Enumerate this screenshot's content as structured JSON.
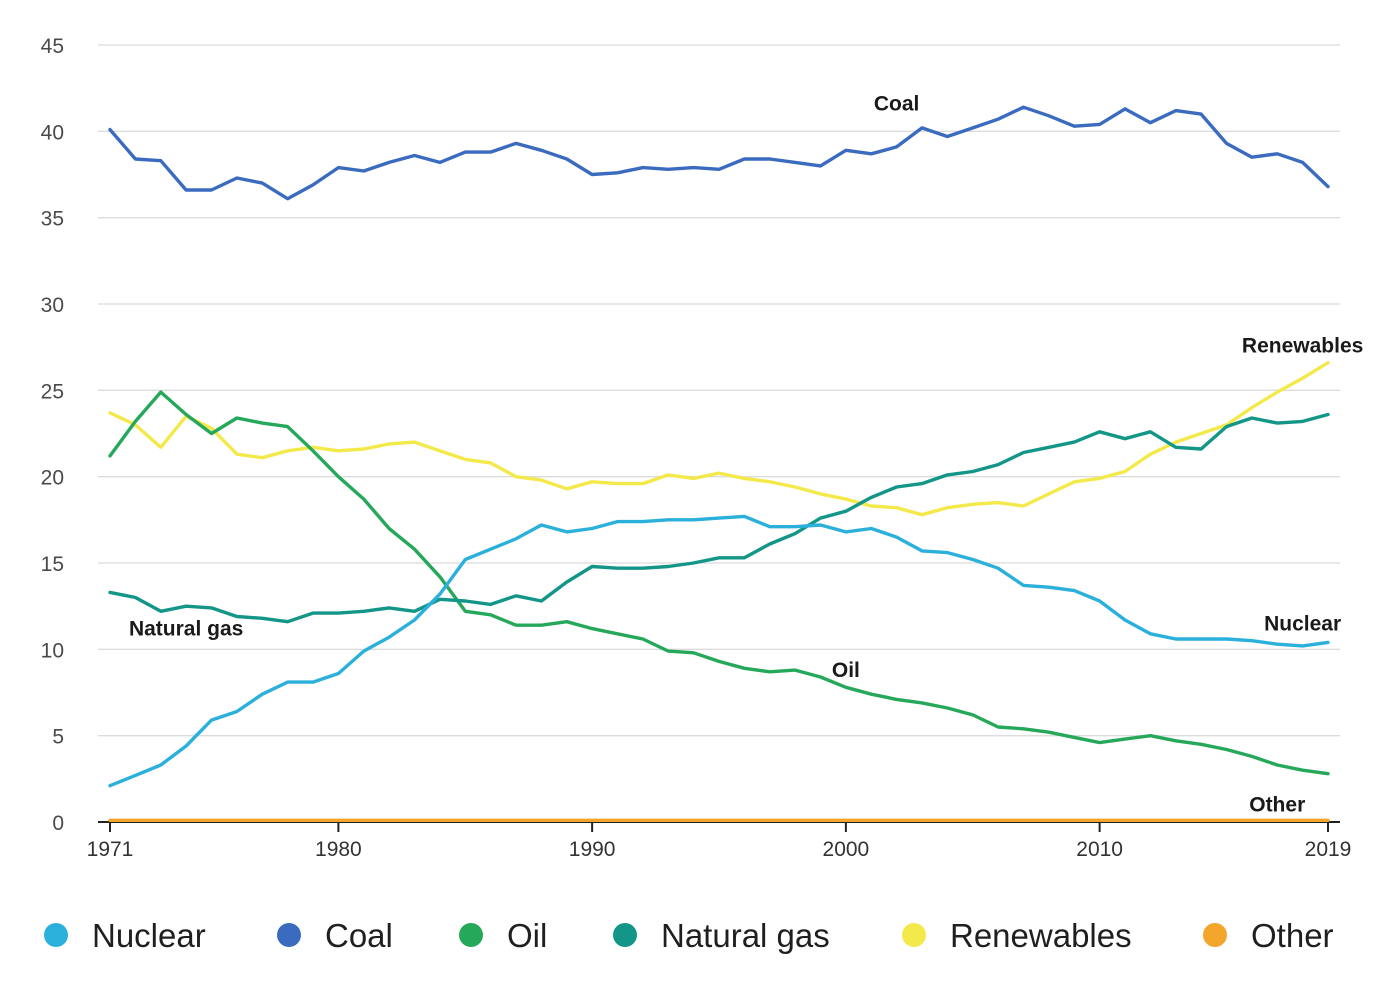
{
  "chart_data": {
    "type": "line",
    "title": "",
    "xlabel": "",
    "ylabel": "",
    "ylim": [
      0,
      45
    ],
    "xlim": [
      1971,
      2019
    ],
    "yticks": [
      0,
      5,
      10,
      15,
      20,
      25,
      30,
      35,
      40,
      45
    ],
    "xticks": [
      1971,
      1980,
      1990,
      2000,
      2010,
      2019
    ],
    "grid": "horizontal",
    "legend_position": "bottom",
    "x": [
      1971,
      1972,
      1973,
      1974,
      1975,
      1976,
      1977,
      1978,
      1979,
      1980,
      1981,
      1982,
      1983,
      1984,
      1985,
      1986,
      1987,
      1988,
      1989,
      1990,
      1991,
      1992,
      1993,
      1994,
      1995,
      1996,
      1997,
      1998,
      1999,
      2000,
      2001,
      2002,
      2003,
      2004,
      2005,
      2006,
      2007,
      2008,
      2009,
      2010,
      2011,
      2012,
      2013,
      2014,
      2015,
      2016,
      2017,
      2018,
      2019
    ],
    "series": [
      {
        "name": "Coal",
        "color": "#3b6bbf",
        "label": "Coal",
        "values": [
          40.1,
          38.4,
          38.3,
          36.6,
          36.6,
          37.3,
          37.0,
          36.1,
          36.9,
          37.9,
          37.7,
          38.2,
          38.6,
          38.2,
          38.8,
          38.8,
          39.3,
          38.9,
          38.4,
          37.5,
          37.6,
          37.9,
          37.8,
          37.9,
          37.8,
          38.4,
          38.4,
          38.2,
          38.0,
          38.9,
          38.7,
          39.1,
          40.2,
          39.7,
          40.2,
          40.7,
          41.4,
          40.9,
          40.3,
          40.4,
          41.3,
          40.5,
          41.2,
          41.0,
          39.3,
          38.5,
          38.7,
          38.2,
          36.8
        ]
      },
      {
        "name": "Renewables",
        "color": "#f4e94a",
        "label": "Renewables",
        "values": [
          23.7,
          23.0,
          21.7,
          23.5,
          22.8,
          21.3,
          21.1,
          21.5,
          21.7,
          21.5,
          21.6,
          21.9,
          22.0,
          21.5,
          21.0,
          20.8,
          20.0,
          19.8,
          19.3,
          19.7,
          19.6,
          19.6,
          20.1,
          19.9,
          20.2,
          19.9,
          19.7,
          19.4,
          19.0,
          18.7,
          18.3,
          18.2,
          17.8,
          18.2,
          18.4,
          18.5,
          18.3,
          19.0,
          19.7,
          19.9,
          20.3,
          21.3,
          22.0,
          22.5,
          23.0,
          24.0,
          24.9,
          25.7,
          26.6
        ]
      },
      {
        "name": "Oil",
        "color": "#26a85b",
        "label": "Oil",
        "values": [
          21.2,
          23.2,
          24.9,
          23.6,
          22.5,
          23.4,
          23.1,
          22.9,
          21.5,
          20.0,
          18.7,
          17.0,
          15.8,
          14.2,
          12.2,
          12.0,
          11.4,
          11.4,
          11.6,
          11.2,
          10.9,
          10.6,
          9.9,
          9.8,
          9.3,
          8.9,
          8.7,
          8.8,
          8.4,
          7.8,
          7.4,
          7.1,
          6.9,
          6.6,
          6.2,
          5.5,
          5.4,
          5.2,
          4.9,
          4.6,
          4.8,
          5.0,
          4.7,
          4.5,
          4.2,
          3.8,
          3.3,
          3.0,
          2.8
        ]
      },
      {
        "name": "Natural gas",
        "color": "#139688",
        "label": "Natural gas",
        "values": [
          13.3,
          13.0,
          12.2,
          12.5,
          12.4,
          11.9,
          11.8,
          11.6,
          12.1,
          12.1,
          12.2,
          12.4,
          12.2,
          12.9,
          12.8,
          12.6,
          13.1,
          12.8,
          13.9,
          14.8,
          14.7,
          14.7,
          14.8,
          15.0,
          15.3,
          15.3,
          16.1,
          16.7,
          17.6,
          18.0,
          18.8,
          19.4,
          19.6,
          20.1,
          20.3,
          20.7,
          21.4,
          21.7,
          22.0,
          22.6,
          22.2,
          22.6,
          21.7,
          21.6,
          22.9,
          23.4,
          23.1,
          23.2,
          23.6
        ]
      },
      {
        "name": "Nuclear",
        "color": "#2bb0dc",
        "label": "Nuclear",
        "values": [
          2.1,
          2.7,
          3.3,
          4.4,
          5.9,
          6.4,
          7.4,
          8.1,
          8.1,
          8.6,
          9.9,
          10.7,
          11.7,
          13.2,
          15.2,
          15.8,
          16.4,
          17.2,
          16.8,
          17.0,
          17.4,
          17.4,
          17.5,
          17.5,
          17.6,
          17.7,
          17.1,
          17.1,
          17.2,
          16.8,
          17.0,
          16.5,
          15.7,
          15.6,
          15.2,
          14.7,
          13.7,
          13.6,
          13.4,
          12.8,
          11.7,
          10.9,
          10.6,
          10.6,
          10.6,
          10.5,
          10.3,
          10.2,
          10.4
        ]
      },
      {
        "name": "Other",
        "color": "#f4a52c",
        "label": "Other",
        "values": [
          0.1,
          0.1,
          0.1,
          0.1,
          0.1,
          0.1,
          0.1,
          0.1,
          0.1,
          0.1,
          0.1,
          0.1,
          0.1,
          0.1,
          0.1,
          0.1,
          0.1,
          0.1,
          0.1,
          0.1,
          0.1,
          0.1,
          0.1,
          0.1,
          0.1,
          0.1,
          0.1,
          0.1,
          0.1,
          0.1,
          0.1,
          0.1,
          0.1,
          0.1,
          0.1,
          0.1,
          0.1,
          0.1,
          0.1,
          0.1,
          0.1,
          0.1,
          0.1,
          0.1,
          0.1,
          0.1,
          0.1,
          0.1,
          0.1
        ]
      }
    ],
    "annotations": [
      {
        "text": "Coal",
        "x": 2002,
        "y": 41.2
      },
      {
        "text": "Renewables",
        "x": 2018,
        "y": 27.2
      },
      {
        "text": "Natural gas",
        "x": 1974,
        "y": 10.8
      },
      {
        "text": "Nuclear",
        "x": 2018,
        "y": 11.1
      },
      {
        "text": "Oil",
        "x": 2000,
        "y": 8.4
      },
      {
        "text": "Other",
        "x": 2017,
        "y": 0.6
      }
    ]
  },
  "legend": [
    {
      "label": "Nuclear",
      "color": "#2bb0dc"
    },
    {
      "label": "Coal",
      "color": "#3b6bbf"
    },
    {
      "label": "Oil",
      "color": "#26a85b"
    },
    {
      "label": "Natural gas",
      "color": "#139688"
    },
    {
      "label": "Renewables",
      "color": "#f4e94a"
    },
    {
      "label": "Other",
      "color": "#f4a52c"
    }
  ]
}
